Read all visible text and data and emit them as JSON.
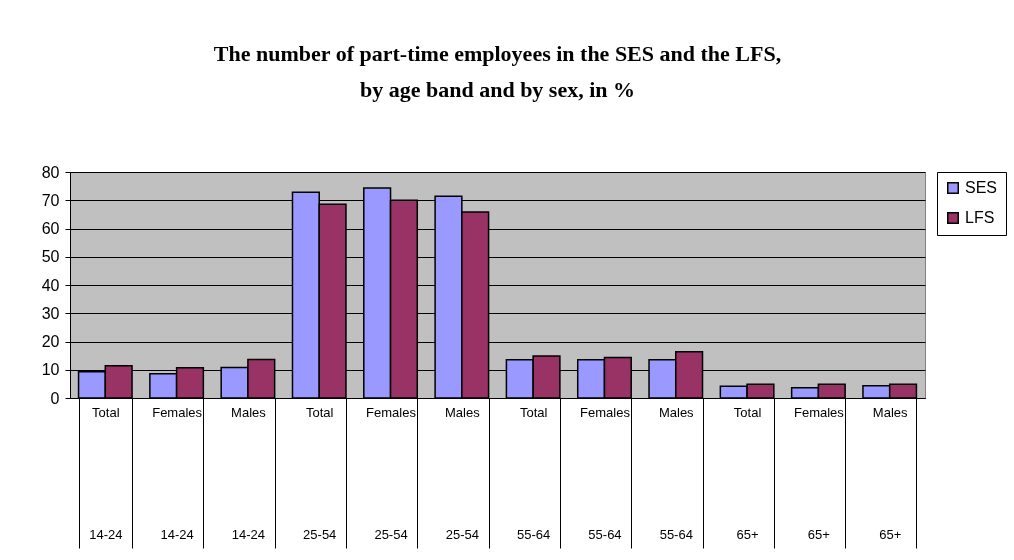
{
  "chart_data": {
    "type": "bar",
    "title": "The number of part-time employees in the SES and the LFS,\nby age band and by sex, in %",
    "categories": [
      "Total\n14-24",
      "Females\n14-24",
      "Males\n14-24",
      "Total\n25-54",
      "Females\n25-54",
      "Males\n25-54",
      "Total\n55-64",
      "Females\n55-64",
      "Males\n55-64",
      "Total\n65+",
      "Females\n65+",
      "Males\n65+"
    ],
    "series": [
      {
        "name": "SES",
        "color": "#9999ff",
        "values": [
          9.3,
          8.6,
          10.8,
          72.8,
          74.3,
          71.4,
          13.5,
          13.5,
          13.5,
          4.2,
          3.6,
          4.3
        ]
      },
      {
        "name": "LFS",
        "color": "#993366",
        "values": [
          11.4,
          10.7,
          13.6,
          68.6,
          70.0,
          65.8,
          14.9,
          14.3,
          16.4,
          4.9,
          4.9,
          4.9
        ]
      }
    ],
    "ylim": [
      0,
      80
    ],
    "yticks": [
      0,
      10,
      20,
      30,
      40,
      50,
      60,
      70,
      80
    ],
    "grid": "y",
    "legend": "right"
  }
}
